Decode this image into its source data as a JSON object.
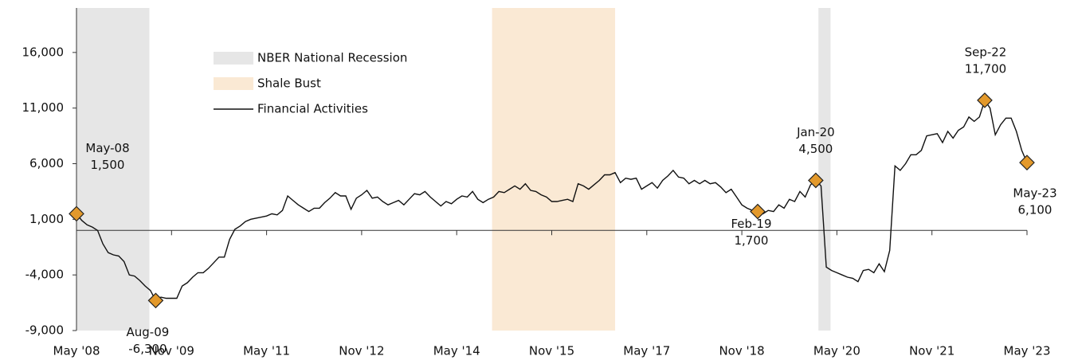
{
  "chart_data": {
    "type": "line",
    "categories": [
      "May '08",
      null,
      null,
      null,
      null,
      null,
      null,
      null,
      null,
      null,
      null,
      null,
      null,
      null,
      null,
      null,
      null,
      null,
      "Nov '09",
      null,
      null,
      null,
      null,
      null,
      null,
      null,
      null,
      null,
      null,
      null,
      null,
      null,
      null,
      null,
      null,
      null,
      "May '11",
      null,
      null,
      null,
      null,
      null,
      null,
      null,
      null,
      null,
      null,
      null,
      null,
      null,
      null,
      null,
      null,
      null,
      "Nov '12",
      null,
      null,
      null,
      null,
      null,
      null,
      null,
      null,
      null,
      null,
      null,
      null,
      null,
      null,
      null,
      null,
      null,
      "May '14",
      null,
      null,
      null,
      null,
      null,
      null,
      null,
      null,
      null,
      null,
      null,
      null,
      null,
      null,
      null,
      null,
      null,
      "Nov '15",
      null,
      null,
      null,
      null,
      null,
      null,
      null,
      null,
      null,
      null,
      null,
      null,
      null,
      null,
      null,
      null,
      null,
      "May '17",
      null,
      null,
      null,
      null,
      null,
      null,
      null,
      null,
      null,
      null,
      null,
      null,
      null,
      null,
      null,
      null,
      null,
      "Nov '18",
      null,
      null,
      null,
      null,
      null,
      null,
      null,
      null,
      null,
      null,
      null,
      null,
      null,
      null,
      null,
      null,
      null,
      "May '20",
      null,
      null,
      null,
      null,
      null,
      null,
      null,
      null,
      null,
      null,
      null,
      null,
      null,
      null,
      null,
      null,
      null,
      "Nov '21",
      null,
      null,
      null,
      null,
      null,
      null,
      null,
      null,
      null,
      null,
      null,
      null,
      null,
      null,
      null,
      null,
      null,
      "May '23"
    ],
    "series": [
      {
        "name": "Financial Activities",
        "color": "#111111",
        "values": [
          1500,
          900,
          500,
          300,
          0,
          -1200,
          -2000,
          -2200,
          -2300,
          -2800,
          -4000,
          -4100,
          -4500,
          -5000,
          -5400,
          -6300,
          -6000,
          -6100,
          -6100,
          -6100,
          -5000,
          -4700,
          -4200,
          -3800,
          -3800,
          -3400,
          -2900,
          -2400,
          -2400,
          -800,
          100,
          400,
          800,
          1000,
          1100,
          1200,
          1300,
          1500,
          1400,
          1800,
          3100,
          2700,
          2300,
          2000,
          1700,
          2000,
          2000,
          2500,
          2900,
          3400,
          3100,
          3100,
          1900,
          2900,
          3200,
          3600,
          2900,
          3000,
          2600,
          2300,
          2500,
          2700,
          2300,
          2800,
          3300,
          3200,
          3500,
          3000,
          2600,
          2200,
          2600,
          2400,
          2800,
          3100,
          3000,
          3500,
          2800,
          2500,
          2800,
          3000,
          3500,
          3400,
          3700,
          4000,
          3700,
          4200,
          3600,
          3500,
          3200,
          3000,
          2600,
          2600,
          2700,
          2800,
          2600,
          4200,
          4000,
          3700,
          4100,
          4500,
          5000,
          5000,
          5200,
          4300,
          4700,
          4600,
          4700,
          3700,
          4000,
          4300,
          3800,
          4500,
          4900,
          5400,
          4800,
          4700,
          4200,
          4500,
          4200,
          4500,
          4200,
          4300,
          3900,
          3400,
          3700,
          3000,
          2300,
          2000,
          1800,
          1700,
          1500,
          1800,
          1700,
          2300,
          2000,
          2800,
          2600,
          3500,
          3000,
          4100,
          4500,
          4000,
          -3300,
          -3600,
          -3800,
          -4000,
          -4200,
          -4300,
          -4600,
          -3600,
          -3500,
          -3800,
          -3000,
          -3700,
          -1800,
          5800,
          5400,
          6000,
          6800,
          6800,
          7200,
          8500,
          8600,
          8700,
          7900,
          8900,
          8300,
          9000,
          9300,
          10200,
          9800,
          10200,
          11700,
          11000,
          8600,
          9500,
          10100,
          10100,
          8900,
          7200,
          6100
        ]
      }
    ],
    "shading": [
      {
        "name": "NBER National Recession",
        "color": "#e6e6e6",
        "ranges": [
          [
            0,
            13.8
          ],
          [
            140.5,
            142.8
          ]
        ]
      },
      {
        "name": "Shale Bust",
        "color": "#fae9d4",
        "ranges": [
          [
            78.7,
            102
          ]
        ]
      }
    ],
    "annotations": [
      {
        "index": 0,
        "label": "May-08",
        "value_label": "1,500"
      },
      {
        "index": 15,
        "label": "Aug-09",
        "value_label": "-6,300"
      },
      {
        "index": 129,
        "label": "Feb-19",
        "value_label": "1,700"
      },
      {
        "index": 140,
        "label": "Jan-20",
        "value_label": "4,500"
      },
      {
        "index": 172,
        "label": "Sep-22",
        "value_label": "11,700"
      },
      {
        "index": 180,
        "label": "May-23",
        "value_label": "6,100"
      }
    ],
    "marker_color": "#e3992b",
    "ylim": [
      -9000,
      20000
    ],
    "yticks": [
      {
        "value": -9000,
        "label": "-9,000"
      },
      {
        "value": -4000,
        "label": "-4,000"
      },
      {
        "value": 1000,
        "label": "1,000"
      },
      {
        "value": 6000,
        "label": "6,000"
      },
      {
        "value": 11000,
        "label": "11,000"
      },
      {
        "value": 16000,
        "label": "16,000"
      }
    ],
    "grid": false,
    "legend": "top-left"
  }
}
